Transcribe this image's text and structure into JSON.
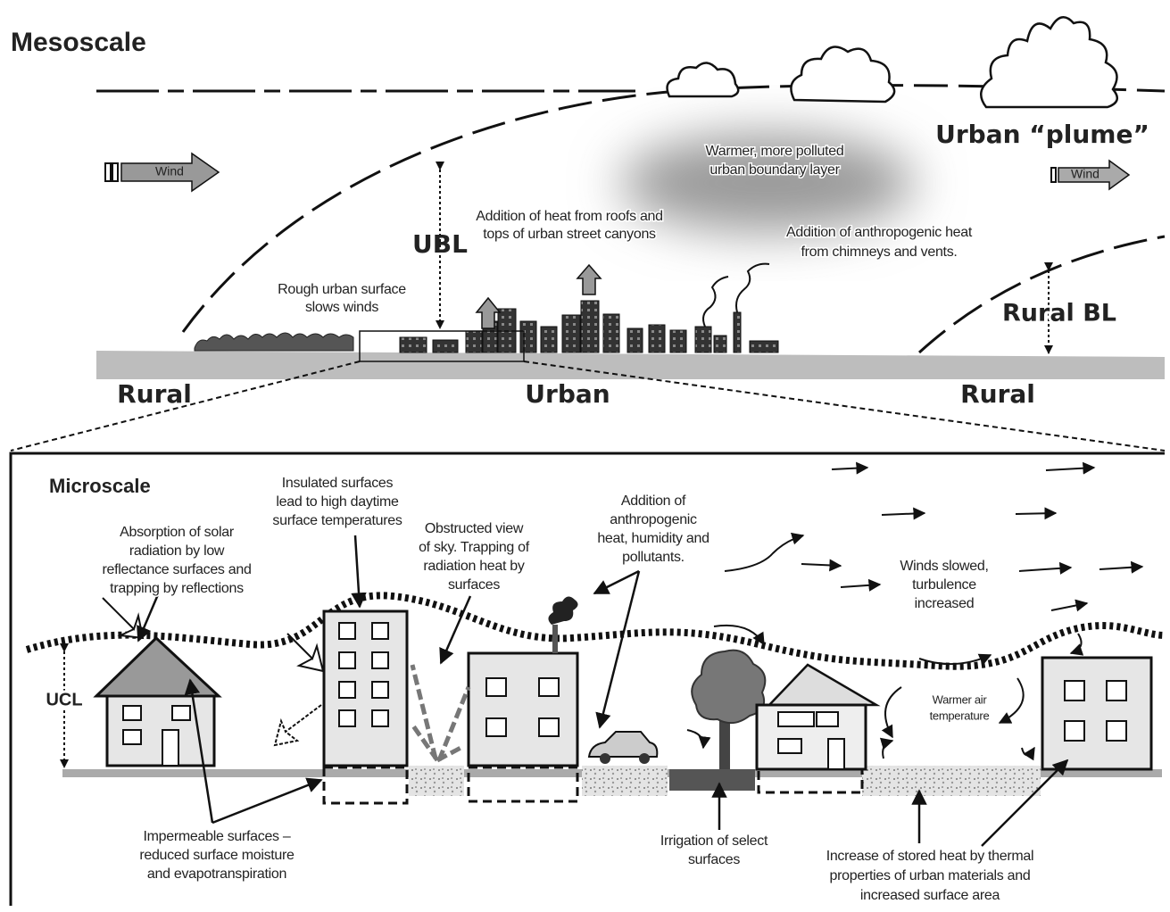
{
  "mesoscale": {
    "title": "Mesoscale",
    "wind_left": "Wind",
    "wind_right": "Wind",
    "plume": "Urban “plume”",
    "ubl": "UBL",
    "rural_bl": "Rural BL",
    "zones": [
      "Rural",
      "Urban",
      "Rural"
    ],
    "notes": [
      {
        "lines": [
          "Warmer, more polluted",
          "urban boundary layer"
        ]
      },
      {
        "lines": [
          "Addition of heat from roofs and",
          "tops of urban street canyons"
        ]
      },
      {
        "lines": [
          "Addition of anthropogenic heat",
          "from chimneys and vents."
        ]
      },
      {
        "lines": [
          "Rough urban surface",
          "slows winds"
        ]
      }
    ]
  },
  "microscale": {
    "title": "Microscale",
    "ucl": "UCL",
    "notes": [
      {
        "lines": [
          "Absorption of solar",
          "radiation by low",
          "reflectance surfaces and",
          "trapping by reflections"
        ]
      },
      {
        "lines": [
          "Insulated surfaces",
          "lead to high daytime",
          "surface temperatures"
        ]
      },
      {
        "lines": [
          "Obstructed view",
          "of sky. Trapping of",
          "radiation heat by",
          "surfaces"
        ]
      },
      {
        "lines": [
          "Addition of",
          "anthropogenic",
          "heat, humidity and",
          "pollutants."
        ]
      },
      {
        "lines": [
          "Winds slowed,",
          "turbulence",
          "increased"
        ]
      },
      {
        "lines": [
          "Warmer air",
          "temperature"
        ]
      },
      {
        "lines": [
          "Impermeable surfaces –",
          "reduced surface moisture",
          "and evapotranspiration"
        ]
      },
      {
        "lines": [
          "Irrigation of select",
          "surfaces"
        ]
      },
      {
        "lines": [
          "Increase of stored heat by thermal",
          "properties of urban materials and",
          "increased surface area"
        ]
      }
    ]
  }
}
